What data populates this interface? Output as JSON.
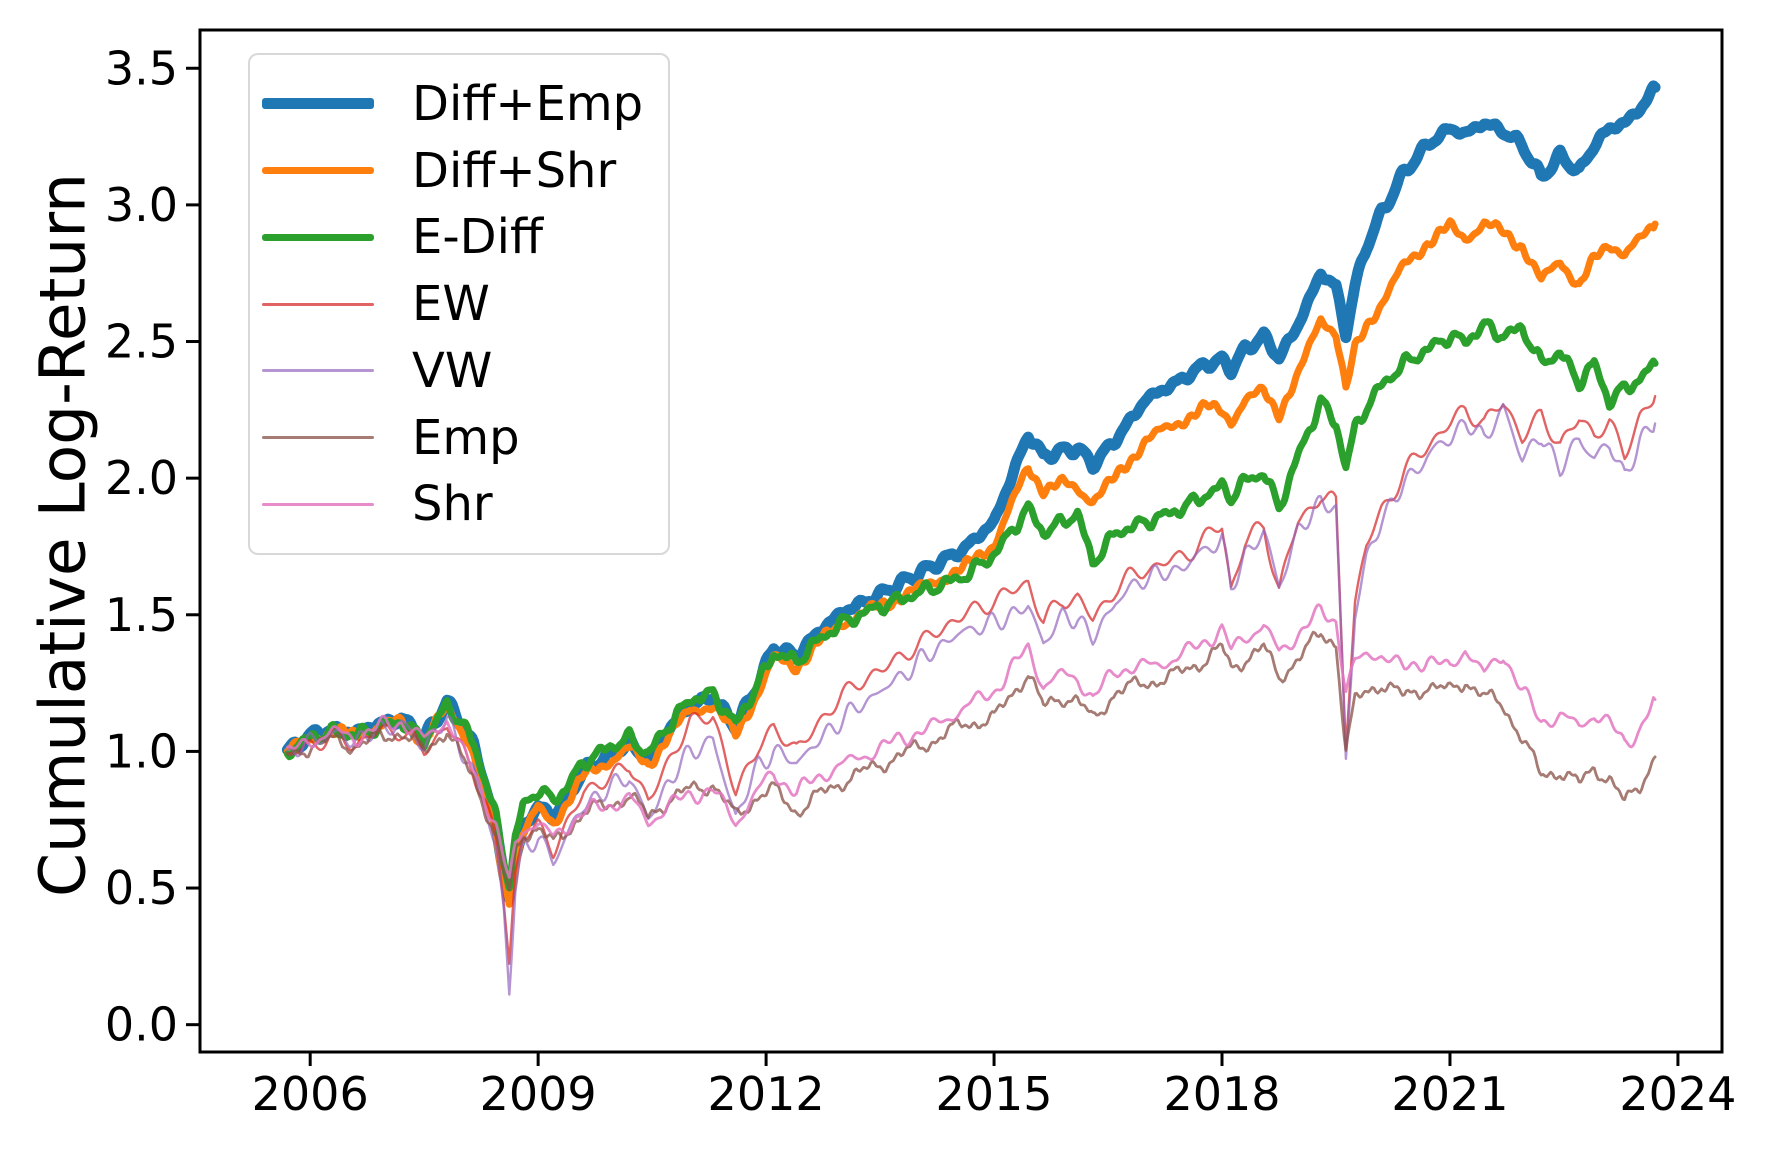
{
  "chart_data": {
    "type": "line",
    "title": "",
    "xlabel": "",
    "ylabel": "Cumulative Log-Return",
    "xlim": [
      2004.55,
      2024.58
    ],
    "ylim": [
      -0.1,
      3.64
    ],
    "x_ticks": [
      2006,
      2009,
      2012,
      2015,
      2018,
      2021,
      2024
    ],
    "x_tick_labels": [
      "2006",
      "2009",
      "2012",
      "2015",
      "2018",
      "2021",
      "2024"
    ],
    "y_ticks": [
      0.0,
      0.5,
      1.0,
      1.5,
      2.0,
      2.5,
      3.0,
      3.5
    ],
    "y_tick_labels": [
      "0.0",
      "0.5",
      "1.0",
      "1.5",
      "2.0",
      "2.5",
      "3.0",
      "3.5"
    ],
    "grid": false,
    "legend": {
      "position": "upper left",
      "border_color": "#d8d8d8",
      "background": "#ffffff"
    },
    "x": [
      2005.7,
      2006.0,
      2006.3,
      2006.6,
      2006.9,
      2007.2,
      2007.5,
      2007.8,
      2008.0,
      2008.15,
      2008.3,
      2008.45,
      2008.55,
      2008.62,
      2008.7,
      2008.8,
      2009.0,
      2009.2,
      2009.35,
      2009.6,
      2009.9,
      2010.2,
      2010.45,
      2010.7,
      2011.0,
      2011.3,
      2011.6,
      2011.9,
      2012.1,
      2012.4,
      2012.7,
      2013.0,
      2013.4,
      2013.8,
      2014.2,
      2014.6,
      2015.0,
      2015.45,
      2015.65,
      2015.9,
      2016.1,
      2016.3,
      2016.6,
      2017.0,
      2017.4,
      2017.8,
      2018.0,
      2018.12,
      2018.3,
      2018.55,
      2018.75,
      2019.0,
      2019.3,
      2019.5,
      2019.63,
      2019.75,
      2019.9,
      2020.1,
      2020.4,
      2020.7,
      2021.0,
      2021.2,
      2021.45,
      2021.7,
      2021.95,
      2022.2,
      2022.45,
      2022.7,
      2022.9,
      2023.1,
      2023.3,
      2023.5,
      2023.7
    ],
    "series": [
      {
        "name": "Diff+Emp",
        "color": "#1f77b4",
        "opacity": 1,
        "width": 11,
        "noise": 0.012,
        "seed": 3,
        "values": [
          1.0,
          1.06,
          1.08,
          1.07,
          1.1,
          1.12,
          1.05,
          1.18,
          1.1,
          1.02,
          0.88,
          0.72,
          0.55,
          0.47,
          0.6,
          0.72,
          0.8,
          0.76,
          0.82,
          0.93,
          0.98,
          1.03,
          0.97,
          1.07,
          1.17,
          1.2,
          1.09,
          1.25,
          1.38,
          1.35,
          1.44,
          1.51,
          1.56,
          1.62,
          1.68,
          1.74,
          1.84,
          2.16,
          2.08,
          2.1,
          2.11,
          2.05,
          2.14,
          2.29,
          2.35,
          2.42,
          2.43,
          2.4,
          2.47,
          2.52,
          2.44,
          2.56,
          2.75,
          2.7,
          2.53,
          2.7,
          2.85,
          2.97,
          3.12,
          3.22,
          3.28,
          3.26,
          3.3,
          3.27,
          3.22,
          3.1,
          3.18,
          3.12,
          3.22,
          3.28,
          3.3,
          3.35,
          3.43
        ]
      },
      {
        "name": "Diff+Shr",
        "color": "#ff7f0e",
        "opacity": 1,
        "width": 7,
        "noise": 0.014,
        "seed": 7,
        "values": [
          1.0,
          1.05,
          1.07,
          1.06,
          1.09,
          1.11,
          1.04,
          1.16,
          1.08,
          1.0,
          0.85,
          0.68,
          0.52,
          0.45,
          0.58,
          0.7,
          0.79,
          0.74,
          0.8,
          0.91,
          0.96,
          1.01,
          0.95,
          1.05,
          1.15,
          1.17,
          1.06,
          1.22,
          1.34,
          1.31,
          1.4,
          1.47,
          1.52,
          1.57,
          1.62,
          1.67,
          1.76,
          2.04,
          1.96,
          1.98,
          1.96,
          1.92,
          2.0,
          2.14,
          2.2,
          2.26,
          2.25,
          2.21,
          2.28,
          2.32,
          2.24,
          2.37,
          2.59,
          2.53,
          2.32,
          2.47,
          2.56,
          2.64,
          2.78,
          2.86,
          2.92,
          2.88,
          2.93,
          2.9,
          2.85,
          2.72,
          2.8,
          2.7,
          2.8,
          2.86,
          2.82,
          2.87,
          2.93
        ]
      },
      {
        "name": "E-Diff",
        "color": "#2ca02c",
        "opacity": 1,
        "width": 7,
        "noise": 0.016,
        "seed": 11,
        "values": [
          1.0,
          1.05,
          1.07,
          1.06,
          1.09,
          1.11,
          1.04,
          1.17,
          1.1,
          1.03,
          0.9,
          0.75,
          0.6,
          0.52,
          0.68,
          0.8,
          0.86,
          0.82,
          0.86,
          0.96,
          1.01,
          1.05,
          0.99,
          1.09,
          1.19,
          1.21,
          1.1,
          1.25,
          1.36,
          1.33,
          1.41,
          1.47,
          1.52,
          1.56,
          1.6,
          1.64,
          1.72,
          1.89,
          1.8,
          1.84,
          1.87,
          1.69,
          1.8,
          1.84,
          1.88,
          1.94,
          1.97,
          1.93,
          1.99,
          2.02,
          1.89,
          2.08,
          2.28,
          2.2,
          2.04,
          2.18,
          2.26,
          2.34,
          2.42,
          2.47,
          2.52,
          2.5,
          2.56,
          2.52,
          2.55,
          2.42,
          2.46,
          2.35,
          2.42,
          2.28,
          2.33,
          2.36,
          2.42
        ]
      },
      {
        "name": "EW",
        "color": "#d62728",
        "opacity": 0.72,
        "width": 2.4,
        "noise": 0.022,
        "seed": 13,
        "values": [
          0.97,
          1.03,
          1.05,
          1.03,
          1.07,
          1.08,
          1.0,
          1.1,
          1.0,
          0.93,
          0.82,
          0.67,
          0.45,
          0.22,
          0.55,
          0.7,
          0.72,
          0.64,
          0.72,
          0.85,
          0.9,
          0.95,
          0.82,
          0.95,
          1.11,
          1.13,
          0.85,
          1.02,
          1.08,
          1.01,
          1.1,
          1.21,
          1.28,
          1.35,
          1.43,
          1.5,
          1.55,
          1.62,
          1.47,
          1.56,
          1.56,
          1.48,
          1.6,
          1.67,
          1.7,
          1.78,
          1.83,
          1.6,
          1.76,
          1.83,
          1.59,
          1.84,
          1.94,
          1.9,
          1.04,
          1.55,
          1.75,
          1.88,
          2.02,
          2.12,
          2.2,
          2.25,
          2.2,
          2.28,
          2.15,
          2.23,
          2.12,
          2.22,
          2.16,
          2.2,
          2.09,
          2.22,
          2.3
        ]
      },
      {
        "name": "VW",
        "color": "#9467bd",
        "opacity": 0.7,
        "width": 2.4,
        "noise": 0.022,
        "seed": 17,
        "values": [
          0.98,
          1.04,
          1.06,
          1.04,
          1.08,
          1.1,
          1.02,
          1.12,
          1.0,
          0.92,
          0.8,
          0.65,
          0.4,
          0.12,
          0.5,
          0.65,
          0.68,
          0.6,
          0.68,
          0.8,
          0.86,
          0.91,
          0.75,
          0.88,
          1.0,
          1.04,
          0.76,
          0.95,
          1.0,
          0.96,
          1.04,
          1.12,
          1.2,
          1.28,
          1.37,
          1.44,
          1.47,
          1.53,
          1.4,
          1.49,
          1.49,
          1.41,
          1.55,
          1.64,
          1.66,
          1.74,
          1.78,
          1.59,
          1.72,
          1.8,
          1.61,
          1.8,
          1.92,
          1.88,
          0.98,
          1.5,
          1.7,
          1.85,
          1.98,
          2.08,
          2.15,
          2.2,
          2.15,
          2.25,
          2.08,
          2.15,
          2.04,
          2.14,
          2.08,
          2.12,
          2.01,
          2.13,
          2.2
        ]
      },
      {
        "name": "Emp",
        "color": "#8c564b",
        "opacity": 0.78,
        "width": 2.8,
        "noise": 0.02,
        "seed": 19,
        "values": [
          0.98,
          1.02,
          1.04,
          1.02,
          1.05,
          1.07,
          1.0,
          1.08,
          0.97,
          0.9,
          0.8,
          0.68,
          0.55,
          0.48,
          0.62,
          0.7,
          0.72,
          0.66,
          0.7,
          0.78,
          0.8,
          0.84,
          0.76,
          0.82,
          0.86,
          0.88,
          0.76,
          0.84,
          0.86,
          0.78,
          0.84,
          0.89,
          0.94,
          0.99,
          1.04,
          1.1,
          1.12,
          1.29,
          1.16,
          1.2,
          1.19,
          1.11,
          1.22,
          1.25,
          1.28,
          1.34,
          1.38,
          1.3,
          1.34,
          1.38,
          1.27,
          1.34,
          1.43,
          1.4,
          1.0,
          1.18,
          1.22,
          1.25,
          1.2,
          1.24,
          1.22,
          1.26,
          1.2,
          1.17,
          1.05,
          0.91,
          0.93,
          0.88,
          0.94,
          0.9,
          0.81,
          0.88,
          0.98
        ]
      },
      {
        "name": "Shr",
        "color": "#e377c2",
        "opacity": 0.85,
        "width": 2.8,
        "noise": 0.02,
        "seed": 23,
        "values": [
          0.99,
          1.04,
          1.07,
          1.05,
          1.09,
          1.11,
          1.04,
          1.12,
          1.0,
          0.93,
          0.83,
          0.72,
          0.6,
          0.52,
          0.65,
          0.72,
          0.74,
          0.68,
          0.72,
          0.78,
          0.8,
          0.83,
          0.74,
          0.8,
          0.84,
          0.86,
          0.74,
          0.86,
          0.92,
          0.85,
          0.91,
          0.95,
          1.0,
          1.05,
          1.09,
          1.16,
          1.22,
          1.38,
          1.24,
          1.28,
          1.27,
          1.19,
          1.3,
          1.31,
          1.34,
          1.41,
          1.44,
          1.37,
          1.42,
          1.46,
          1.36,
          1.43,
          1.51,
          1.48,
          1.23,
          1.32,
          1.35,
          1.36,
          1.3,
          1.34,
          1.3,
          1.38,
          1.28,
          1.36,
          1.22,
          1.11,
          1.13,
          1.09,
          1.14,
          1.1,
          1.03,
          1.08,
          1.19
        ]
      }
    ]
  }
}
